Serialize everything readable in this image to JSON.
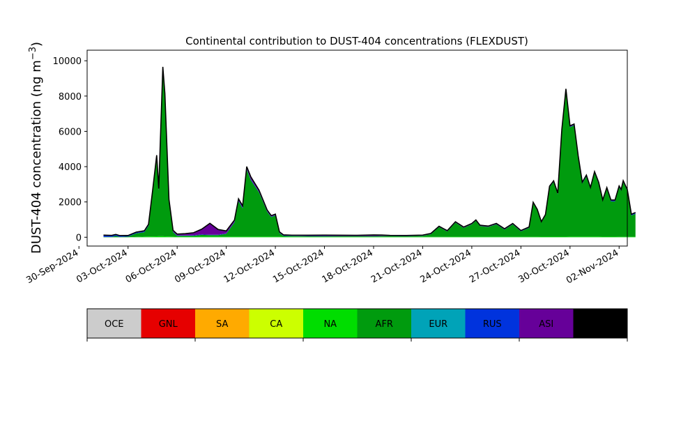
{
  "chart_data": {
    "type": "area",
    "stacked": true,
    "title": "Continental contribution to DUST-404 concentrations (FLEXDUST)",
    "xlabel": "",
    "ylabel": "DUST-404 concentration (ng m",
    "ylabel_sup": "−3",
    "ylabel_close": ")",
    "xlim": [
      "2024-09-30T12:00",
      "2024-11-02T12:00"
    ],
    "ylim": [
      -500,
      10600
    ],
    "yticks": [
      0,
      2000,
      4000,
      6000,
      8000,
      10000
    ],
    "xticks": [
      "2024-09-30",
      "2024-10-03",
      "2024-10-06",
      "2024-10-09",
      "2024-10-12",
      "2024-10-15",
      "2024-10-18",
      "2024-10-21",
      "2024-10-24",
      "2024-10-27",
      "2024-10-30",
      "2024-11-02"
    ],
    "xtick_labels": [
      "30-Sep-2024",
      "03-Oct-2024",
      "06-Oct-2024",
      "09-Oct-2024",
      "12-Oct-2024",
      "15-Oct-2024",
      "18-Oct-2024",
      "21-Oct-2024",
      "24-Oct-2024",
      "27-Oct-2024",
      "30-Oct-2024",
      "02-Nov-2024"
    ],
    "region_colors": {
      "OCE": "#cccccc",
      "GNL": "#e60000",
      "SA": "#ffaa00",
      "CA": "#ccff00",
      "NA": "#00dd00",
      "AFR": "#009b0e",
      "EUR": "#00a3b8",
      "RUS": "#0033dd",
      "ASI": "#660099",
      "AUS": "#000000"
    },
    "series": [
      {
        "name": "NA",
        "points": [
          [
            "2024-10-01T12:00",
            0
          ],
          [
            "2024-10-03T00:00",
            0
          ],
          [
            "2024-10-04T00:00",
            40
          ],
          [
            "2024-10-05T00:00",
            60
          ],
          [
            "2024-10-06T00:00",
            30
          ],
          [
            "2024-10-08T00:00",
            40
          ],
          [
            "2024-10-10T00:00",
            40
          ],
          [
            "2024-10-12T00:00",
            40
          ],
          [
            "2024-10-14T00:00",
            20
          ],
          [
            "2024-10-20T00:00",
            20
          ],
          [
            "2024-10-24T00:00",
            30
          ],
          [
            "2024-10-28T00:00",
            30
          ],
          [
            "2024-10-31T00:00",
            40
          ],
          [
            "2024-11-02T00:00",
            30
          ]
        ]
      },
      {
        "name": "AFR",
        "points": [
          [
            "2024-10-01T12:00",
            20
          ],
          [
            "2024-10-02T00:00",
            20
          ],
          [
            "2024-10-02T06:00",
            80
          ],
          [
            "2024-10-02T12:00",
            20
          ],
          [
            "2024-10-03T00:00",
            40
          ],
          [
            "2024-10-03T12:00",
            200
          ],
          [
            "2024-10-04T00:00",
            250
          ],
          [
            "2024-10-04T06:00",
            600
          ],
          [
            "2024-10-04T12:00",
            2500
          ],
          [
            "2024-10-04T18:00",
            4500
          ],
          [
            "2024-10-04T21:00",
            2600
          ],
          [
            "2024-10-05T03:00",
            9500
          ],
          [
            "2024-10-05T06:00",
            8000
          ],
          [
            "2024-10-05T12:00",
            2000
          ],
          [
            "2024-10-05T18:00",
            250
          ],
          [
            "2024-10-06T00:00",
            50
          ],
          [
            "2024-10-06T12:00",
            50
          ],
          [
            "2024-10-07T00:00",
            50
          ],
          [
            "2024-10-07T12:00",
            100
          ],
          [
            "2024-10-08T00:00",
            80
          ],
          [
            "2024-10-08T12:00",
            80
          ],
          [
            "2024-10-09T00:00",
            150
          ],
          [
            "2024-10-09T12:00",
            800
          ],
          [
            "2024-10-09T18:00",
            2000
          ],
          [
            "2024-10-10T00:00",
            1600
          ],
          [
            "2024-10-10T06:00",
            3800
          ],
          [
            "2024-10-10T12:00",
            3200
          ],
          [
            "2024-10-11T00:00",
            2500
          ],
          [
            "2024-10-11T12:00",
            1400
          ],
          [
            "2024-10-11T18:00",
            1100
          ],
          [
            "2024-10-12T00:00",
            1200
          ],
          [
            "2024-10-12T06:00",
            200
          ],
          [
            "2024-10-12T12:00",
            40
          ],
          [
            "2024-10-16T00:00",
            40
          ],
          [
            "2024-10-18T00:00",
            40
          ],
          [
            "2024-10-18T12:00",
            50
          ],
          [
            "2024-10-20T00:00",
            40
          ],
          [
            "2024-10-21T00:00",
            60
          ],
          [
            "2024-10-21T12:00",
            150
          ],
          [
            "2024-10-22T00:00",
            550
          ],
          [
            "2024-10-22T12:00",
            300
          ],
          [
            "2024-10-23T00:00",
            800
          ],
          [
            "2024-10-23T12:00",
            500
          ],
          [
            "2024-10-24T00:00",
            700
          ],
          [
            "2024-10-24T06:00",
            900
          ],
          [
            "2024-10-24T12:00",
            600
          ],
          [
            "2024-10-25T00:00",
            550
          ],
          [
            "2024-10-25T12:00",
            700
          ],
          [
            "2024-10-26T00:00",
            400
          ],
          [
            "2024-10-26T12:00",
            700
          ],
          [
            "2024-10-27T00:00",
            300
          ],
          [
            "2024-10-27T12:00",
            500
          ],
          [
            "2024-10-27T18:00",
            1900
          ],
          [
            "2024-10-28T00:00",
            1500
          ],
          [
            "2024-10-28T06:00",
            800
          ],
          [
            "2024-10-28T12:00",
            1200
          ],
          [
            "2024-10-28T18:00",
            2800
          ],
          [
            "2024-10-29T00:00",
            3100
          ],
          [
            "2024-10-29T06:00",
            2400
          ],
          [
            "2024-10-29T12:00",
            6000
          ],
          [
            "2024-10-29T18:00",
            8300
          ],
          [
            "2024-10-30T00:00",
            6200
          ],
          [
            "2024-10-30T06:00",
            6300
          ],
          [
            "2024-10-30T12:00",
            4500
          ],
          [
            "2024-10-30T18:00",
            3000
          ],
          [
            "2024-10-31T00:00",
            3400
          ],
          [
            "2024-10-31T06:00",
            2700
          ],
          [
            "2024-10-31T12:00",
            3600
          ],
          [
            "2024-10-31T18:00",
            3000
          ],
          [
            "2024-11-01T00:00",
            2000
          ],
          [
            "2024-11-01T06:00",
            2700
          ],
          [
            "2024-11-01T12:00",
            2000
          ],
          [
            "2024-11-01T18:00",
            2000
          ],
          [
            "2024-11-02T00:00",
            2800
          ],
          [
            "2024-11-02T03:00",
            2600
          ],
          [
            "2024-11-02T06:00",
            3100
          ],
          [
            "2024-11-02T12:00",
            2600
          ],
          [
            "2024-11-02T18:00",
            1200
          ],
          [
            "2024-11-03T00:00",
            1300
          ]
        ]
      },
      {
        "name": "RUS",
        "points": [
          [
            "2024-10-01T12:00",
            80
          ],
          [
            "2024-10-03T00:00",
            40
          ],
          [
            "2024-10-05T00:00",
            40
          ],
          [
            "2024-10-06T00:00",
            20
          ],
          [
            "2024-10-09T00:00",
            20
          ],
          [
            "2024-10-10T00:00",
            40
          ],
          [
            "2024-10-12T00:00",
            20
          ],
          [
            "2024-10-16T00:00",
            10
          ],
          [
            "2024-10-24T00:00",
            10
          ],
          [
            "2024-10-28T00:00",
            20
          ],
          [
            "2024-10-31T00:00",
            30
          ],
          [
            "2024-11-03T00:00",
            40
          ]
        ]
      },
      {
        "name": "ASI",
        "points": [
          [
            "2024-10-01T12:00",
            20
          ],
          [
            "2024-10-03T00:00",
            20
          ],
          [
            "2024-10-06T00:00",
            80
          ],
          [
            "2024-10-06T12:00",
            100
          ],
          [
            "2024-10-07T00:00",
            150
          ],
          [
            "2024-10-07T12:00",
            300
          ],
          [
            "2024-10-08T00:00",
            650
          ],
          [
            "2024-10-08T12:00",
            300
          ],
          [
            "2024-10-09T00:00",
            150
          ],
          [
            "2024-10-09T12:00",
            100
          ],
          [
            "2024-10-10T00:00",
            100
          ],
          [
            "2024-10-10T12:00",
            150
          ],
          [
            "2024-10-11T00:00",
            100
          ],
          [
            "2024-10-12T00:00",
            50
          ],
          [
            "2024-10-13T00:00",
            30
          ],
          [
            "2024-10-15T00:00",
            50
          ],
          [
            "2024-10-17T00:00",
            40
          ],
          [
            "2024-10-18T00:00",
            60
          ],
          [
            "2024-10-19T00:00",
            30
          ],
          [
            "2024-10-21T00:00",
            30
          ],
          [
            "2024-10-23T00:00",
            40
          ],
          [
            "2024-10-25T00:00",
            40
          ],
          [
            "2024-10-28T00:00",
            30
          ],
          [
            "2024-10-30T00:00",
            50
          ],
          [
            "2024-11-01T00:00",
            50
          ],
          [
            "2024-11-03T00:00",
            30
          ]
        ]
      }
    ],
    "legend": [
      "OCE",
      "GNL",
      "SA",
      "CA",
      "NA",
      "AFR",
      "EUR",
      "RUS",
      "ASI",
      "AUS"
    ]
  }
}
